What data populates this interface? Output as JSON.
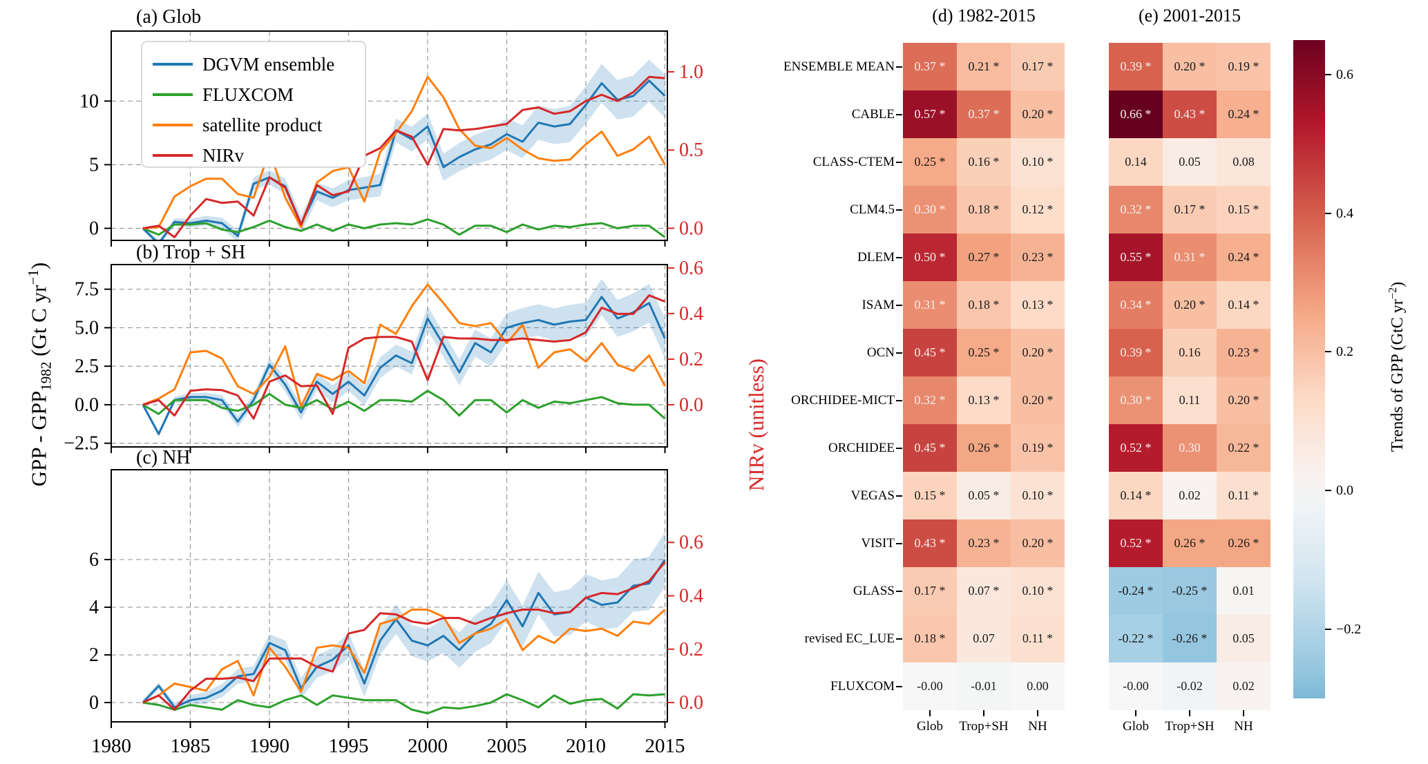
{
  "left_axis_label": {
    "pre": "GPP - GPP",
    "sub": "1982",
    "mid": " (Gt C yr",
    "sup": "−1",
    "post": ")"
  },
  "right_axis_label": "NIRv (unitless)",
  "legend": [
    "DGVM ensemble",
    "FLUXCOM",
    "satellite product",
    "NIRv"
  ],
  "colors": {
    "dgvm": "#1f77b4",
    "fluxcom": "#2ca02c",
    "satellite": "#ff7f0e",
    "nirv": "#d62728",
    "band": "#1f77b4",
    "grid": "#9a9a9a"
  },
  "x_tick_labels": [
    "1980",
    "1985",
    "1990",
    "1995",
    "2000",
    "2005",
    "2010",
    "2015"
  ],
  "years": [
    1982,
    1983,
    1984,
    1985,
    1986,
    1987,
    1988,
    1989,
    1990,
    1991,
    1992,
    1993,
    1994,
    1995,
    1996,
    1997,
    1998,
    1999,
    2000,
    2001,
    2002,
    2003,
    2004,
    2005,
    2006,
    2007,
    2008,
    2009,
    2010,
    2011,
    2012,
    2013,
    2014,
    2015
  ],
  "chart_data": [
    {
      "type": "line",
      "panel_id": "a",
      "title": "(a) Glob",
      "ylim": [
        -0.95,
        15.5
      ],
      "right_axis_scale": 12.3,
      "yticks": {
        "labels": [
          "0",
          "5",
          "10"
        ],
        "values": [
          0,
          5,
          10
        ]
      },
      "right_yticks": {
        "labels": [
          "0.0",
          "0.5",
          "1.0"
        ],
        "values": [
          0,
          0.5,
          1.0
        ]
      },
      "series": [
        {
          "name": "DGVM ensemble",
          "key": "dgvm",
          "values": [
            0,
            -1.2,
            0.5,
            0.4,
            0.6,
            0.4,
            -0.6,
            3.5,
            4.0,
            3.3,
            0.3,
            2.9,
            2.4,
            3.0,
            3.2,
            3.4,
            7.7,
            7.0,
            8.0,
            4.8,
            5.6,
            6.2,
            6.6,
            7.4,
            6.8,
            8.3,
            8.0,
            8.2,
            9.7,
            11.4,
            10.1,
            10.4,
            11.6,
            10.4
          ]
        },
        {
          "name": "FLUXCOM",
          "key": "fluxcom",
          "values": [
            0,
            -0.5,
            0.3,
            0.3,
            0.4,
            -0.1,
            -0.3,
            0.1,
            0.6,
            0.1,
            -0.2,
            0.3,
            -0.2,
            0.3,
            0.0,
            0.3,
            0.4,
            0.3,
            0.7,
            0.3,
            -0.5,
            0.2,
            0.2,
            -0.3,
            0.3,
            -0.1,
            0.2,
            0.1,
            0.3,
            0.4,
            0.0,
            0.2,
            0.2,
            -0.7
          ]
        },
        {
          "name": "satellite product",
          "key": "satellite",
          "values": [
            0,
            0.1,
            2.5,
            3.3,
            3.9,
            3.9,
            2.7,
            2.4,
            6.1,
            2.4,
            0.1,
            3.6,
            4.5,
            4.8,
            2.1,
            6.0,
            7.5,
            9.2,
            11.9,
            10.3,
            7.8,
            6.5,
            6.3,
            7.1,
            6.2,
            5.5,
            5.3,
            5.4,
            6.6,
            7.6,
            5.7,
            6.2,
            7.2,
            5.0
          ]
        },
        {
          "name": "NIRv",
          "key": "nirv",
          "values": [
            0,
            0.2,
            -0.7,
            1.0,
            2.3,
            2.0,
            2.1,
            1.0,
            4.0,
            3.2,
            0.3,
            3.4,
            2.6,
            2.9,
            5.7,
            6.3,
            7.7,
            7.2,
            5.0,
            7.8,
            7.7,
            7.8,
            8.0,
            8.2,
            9.3,
            9.5,
            9.0,
            9.2,
            10.0,
            10.5,
            10.0,
            10.7,
            11.9,
            11.8
          ]
        }
      ]
    },
    {
      "type": "line",
      "panel_id": "b",
      "title": "(b) Trop + SH",
      "ylim": [
        -2.74,
        9.1
      ],
      "right_axis_scale": 14.8,
      "yticks": {
        "labels": [
          "−2.5",
          "0.0",
          "2.5",
          "5.0",
          "7.5"
        ],
        "values": [
          -2.5,
          0,
          2.5,
          5,
          7.5
        ]
      },
      "right_yticks": {
        "labels": [
          "0.0",
          "0.2",
          "0.4",
          "0.6"
        ],
        "values": [
          0,
          0.2,
          0.4,
          0.6
        ]
      },
      "series": [
        {
          "name": "DGVM ensemble",
          "key": "dgvm",
          "values": [
            0,
            -1.9,
            0.3,
            0.5,
            0.5,
            0.3,
            -1.1,
            0.3,
            2.6,
            1.3,
            -0.5,
            1.5,
            0.7,
            1.5,
            0.6,
            2.4,
            3.2,
            2.7,
            5.6,
            3.9,
            2.1,
            4.0,
            3.4,
            5.0,
            5.3,
            5.5,
            5.2,
            5.4,
            5.5,
            7.0,
            5.6,
            6.0,
            6.6,
            4.3
          ]
        },
        {
          "name": "FLUXCOM",
          "key": "fluxcom",
          "values": [
            0,
            -0.6,
            0.3,
            0.3,
            0.3,
            -0.2,
            -0.4,
            0.0,
            0.7,
            0.0,
            -0.2,
            0.3,
            -0.3,
            0.2,
            -0.4,
            0.3,
            0.3,
            0.2,
            0.9,
            0.3,
            -0.7,
            0.3,
            0.3,
            -0.5,
            0.3,
            -0.2,
            0.2,
            0.1,
            0.3,
            0.5,
            0.1,
            0.0,
            0.0,
            -0.9
          ]
        },
        {
          "name": "satellite product",
          "key": "satellite",
          "values": [
            0,
            0.4,
            1.0,
            3.4,
            3.5,
            3.0,
            1.2,
            0.7,
            1.8,
            3.8,
            -0.1,
            2.0,
            1.6,
            2.2,
            1.4,
            5.2,
            4.6,
            6.4,
            7.8,
            6.6,
            5.3,
            5.1,
            5.3,
            4.0,
            5.2,
            2.4,
            3.4,
            3.6,
            2.8,
            4.0,
            2.6,
            2.2,
            3.2,
            1.2
          ]
        },
        {
          "name": "NIRv",
          "key": "nirv",
          "values": [
            0,
            0.3,
            -0.7,
            0.9,
            1.0,
            0.95,
            0.6,
            -0.9,
            1.5,
            1.9,
            1.2,
            1.25,
            -0.6,
            3.7,
            4.3,
            4.4,
            4.4,
            4.1,
            1.6,
            4.4,
            4.3,
            4.3,
            4.2,
            4.2,
            4.3,
            4.2,
            4.1,
            4.2,
            4.7,
            6.3,
            5.9,
            5.9,
            7.1,
            6.7
          ]
        }
      ]
    },
    {
      "type": "line",
      "panel_id": "c",
      "title": "(c) NH",
      "ylim": [
        -0.81,
        9.77
      ],
      "right_axis_scale": 11.2,
      "yticks": {
        "labels": [
          "0",
          "2",
          "4",
          "6"
        ],
        "values": [
          0,
          2,
          4,
          6
        ]
      },
      "right_yticks": {
        "labels": [
          "0.0",
          "0.2",
          "0.4",
          "0.6"
        ],
        "values": [
          0,
          0.2,
          0.4,
          0.6
        ]
      },
      "series": [
        {
          "name": "DGVM ensemble",
          "key": "dgvm",
          "values": [
            0,
            0.7,
            -0.2,
            0.1,
            0.2,
            0.5,
            1.1,
            1.2,
            2.5,
            2.2,
            0.6,
            1.5,
            1.8,
            2.4,
            0.8,
            2.6,
            3.5,
            2.6,
            2.4,
            2.8,
            2.2,
            2.9,
            3.3,
            4.3,
            3.2,
            4.6,
            3.7,
            3.8,
            4.4,
            4.1,
            4.2,
            4.9,
            5.0,
            6.0
          ]
        },
        {
          "name": "FLUXCOM",
          "key": "fluxcom",
          "values": [
            0,
            -0.1,
            -0.3,
            -0.1,
            -0.2,
            -0.3,
            0.1,
            -0.1,
            -0.2,
            0.1,
            0.3,
            -0.1,
            0.3,
            0.2,
            0.1,
            0.1,
            0.1,
            -0.3,
            -0.45,
            -0.2,
            -0.25,
            -0.15,
            0.0,
            0.35,
            0.1,
            -0.2,
            0.3,
            -0.05,
            0.1,
            0.15,
            -0.25,
            0.35,
            0.3,
            0.35
          ]
        },
        {
          "name": "satellite product",
          "key": "satellite",
          "values": [
            0,
            0.3,
            0.8,
            0.65,
            0.5,
            1.4,
            1.75,
            0.3,
            2.3,
            1.5,
            0.45,
            2.3,
            2.4,
            2.3,
            1.25,
            3.3,
            3.5,
            3.9,
            3.9,
            3.6,
            2.5,
            2.9,
            3.1,
            3.5,
            2.2,
            2.8,
            2.5,
            3.1,
            3.0,
            3.1,
            2.8,
            3.4,
            3.3,
            3.9
          ]
        },
        {
          "name": "NIRv",
          "key": "nirv",
          "values": [
            0,
            0.3,
            -0.3,
            0.5,
            1.0,
            1.0,
            1.05,
            0.9,
            1.85,
            1.85,
            1.85,
            1.5,
            1.3,
            2.9,
            3.05,
            3.75,
            3.7,
            3.4,
            3.3,
            3.55,
            3.55,
            3.3,
            3.55,
            3.75,
            3.9,
            3.9,
            3.75,
            3.8,
            4.4,
            4.6,
            4.55,
            4.8,
            5.1,
            5.9
          ]
        }
      ]
    },
    {
      "type": "heatmap",
      "id": "d",
      "title": "(d) 1982-2015",
      "columns": [
        "Glob",
        "Trop+SH",
        "NH"
      ],
      "row_labels": [
        "ENSEMBLE MEAN",
        "CABLE",
        "CLASS-CTEM",
        "CLM4.5",
        "DLEM",
        "ISAM",
        "OCN",
        "ORCHIDEE-MICT",
        "ORCHIDEE",
        "VEGAS",
        "VISIT",
        "GLASS",
        "revised EC_LUE",
        "FLUXCOM"
      ],
      "cells": [
        [
          "0.37 *",
          "0.21 *",
          "0.17 *"
        ],
        [
          "0.57 *",
          "0.37 *",
          "0.20 *"
        ],
        [
          "0.25 *",
          "0.16 *",
          "0.10 *"
        ],
        [
          "0.30 *",
          "0.18 *",
          "0.12 *"
        ],
        [
          "0.50 *",
          "0.27 *",
          "0.23 *"
        ],
        [
          "0.31 *",
          "0.18 *",
          "0.13 *"
        ],
        [
          "0.45 *",
          "0.25 *",
          "0.20 *"
        ],
        [
          "0.32 *",
          "0.13 *",
          "0.20 *"
        ],
        [
          "0.45 *",
          "0.26 *",
          "0.19 *"
        ],
        [
          "0.15 *",
          "0.05 *",
          "0.10 *"
        ],
        [
          "0.43 *",
          "0.23 *",
          "0.20 *"
        ],
        [
          "0.17 *",
          "0.07 *",
          "0.10 *"
        ],
        [
          "0.18 *",
          "0.07",
          "0.11 *"
        ],
        [
          "-0.00",
          "-0.01",
          "0.00"
        ]
      ]
    },
    {
      "type": "heatmap",
      "id": "e",
      "title": "(e) 2001-2015",
      "columns": [
        "Glob",
        "Trop+SH",
        "NH"
      ],
      "row_labels": [
        "ENSEMBLE MEAN",
        "CABLE",
        "CLASS-CTEM",
        "CLM4.5",
        "DLEM",
        "ISAM",
        "OCN",
        "ORCHIDEE-MICT",
        "ORCHIDEE",
        "VEGAS",
        "VISIT",
        "GLASS",
        "revised EC_LUE",
        "FLUXCOM"
      ],
      "cells": [
        [
          "0.39 *",
          "0.20 *",
          "0.19 *"
        ],
        [
          "0.66 *",
          "0.43 *",
          "0.24 *"
        ],
        [
          "0.14",
          "0.05",
          "0.08"
        ],
        [
          "0.32 *",
          "0.17 *",
          "0.15 *"
        ],
        [
          "0.55 *",
          "0.31 *",
          "0.24 *"
        ],
        [
          "0.34 *",
          "0.20 *",
          "0.14 *"
        ],
        [
          "0.39 *",
          "0.16",
          "0.23 *"
        ],
        [
          "0.30 *",
          "0.11",
          "0.20 *"
        ],
        [
          "0.52 *",
          "0.30",
          "0.22 *"
        ],
        [
          "0.14 *",
          "0.02",
          "0.11 *"
        ],
        [
          "0.52 *",
          "0.26 *",
          "0.26 *"
        ],
        [
          "-0.24 *",
          "-0.25 *",
          "0.01"
        ],
        [
          "-0.22 *",
          "-0.26 *",
          "0.05"
        ],
        [
          "-0.00",
          "-0.02",
          "0.02"
        ]
      ]
    }
  ],
  "colorbar": {
    "label": {
      "pre": "Trends of GPP (GtC yr",
      "sup": "−2",
      "post": ")"
    },
    "tick_labels": [
      "0.6",
      "0.4",
      "0.2",
      "0.0",
      "−0.2"
    ],
    "tick_values": [
      0.6,
      0.4,
      0.2,
      0.0,
      -0.2
    ],
    "vmax": 0.65,
    "vmin": -0.3
  }
}
